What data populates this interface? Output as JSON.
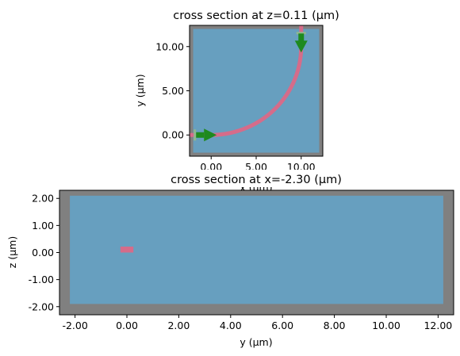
{
  "chart_data": [
    {
      "type": "heatmap",
      "title": "cross section at z=0.11 (μm)",
      "xlabel": "x (μm)",
      "ylabel": "y (μm)",
      "xlim": [
        -2.4,
        12.4
      ],
      "ylim": [
        -2.4,
        12.4
      ],
      "inner_region": {
        "x": [
          -2.0,
          12.0
        ],
        "y": [
          -2.0,
          12.0
        ]
      },
      "x_ticks": [
        {
          "value": 0,
          "label": "0.00"
        },
        {
          "value": 5,
          "label": "5.00"
        },
        {
          "value": 10,
          "label": "10.00"
        }
      ],
      "y_ticks": [
        {
          "value": 0,
          "label": "0.00"
        },
        {
          "value": 5,
          "label": "5.00"
        },
        {
          "value": 10,
          "label": "10.00"
        }
      ],
      "waveguide": {
        "straight": {
          "x0": -2.4,
          "x1": 0.0,
          "y": 0.0
        },
        "bend": {
          "cx": 0.0,
          "cy": 10.0,
          "r": 10.0
        },
        "vertical": {
          "x": 10.0,
          "y0": 10.0,
          "y1": 12.4
        }
      },
      "source": {
        "x": -1.5,
        "y": 0.0,
        "dir": "right"
      },
      "monitor": {
        "x": 10.0,
        "y": 11.3,
        "dir": "down"
      },
      "colors": {
        "border": "#808080",
        "medium": "#679fbf",
        "waveguide": "#d56c8a",
        "arrow": "#1e8a1e"
      }
    },
    {
      "type": "heatmap",
      "title": "cross section at x=-2.30 (μm)",
      "xlabel": "y (μm)",
      "ylabel": "z (μm)",
      "xlim": [
        -2.6,
        12.6
      ],
      "ylim": [
        -2.3,
        2.3
      ],
      "inner_region": {
        "x": [
          -2.2,
          12.2
        ],
        "y": [
          -1.9,
          2.1
        ]
      },
      "x_ticks": [
        {
          "value": -2,
          "label": "-2.00"
        },
        {
          "value": 0,
          "label": "0.00"
        },
        {
          "value": 2,
          "label": "2.00"
        },
        {
          "value": 4,
          "label": "4.00"
        },
        {
          "value": 6,
          "label": "6.00"
        },
        {
          "value": 8,
          "label": "8.00"
        },
        {
          "value": 10,
          "label": "10.00"
        },
        {
          "value": 12,
          "label": "12.00"
        }
      ],
      "y_ticks": [
        {
          "value": 2,
          "label": "2.00"
        },
        {
          "value": 1,
          "label": "1.00"
        },
        {
          "value": 0,
          "label": "0.00"
        },
        {
          "value": -1,
          "label": "-1.00"
        },
        {
          "value": -2,
          "label": "-2.00"
        }
      ],
      "waveguide_rect": {
        "x0": -0.25,
        "x1": 0.25,
        "y0": 0.0,
        "y1": 0.22
      },
      "colors": {
        "border": "#808080",
        "medium": "#679fbf",
        "waveguide": "#d56c8a"
      }
    }
  ]
}
